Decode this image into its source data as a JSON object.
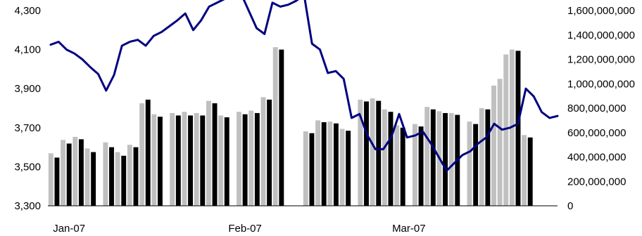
{
  "chart_data": {
    "type": "bar",
    "combo": "bars on right axis with line on left axis",
    "x_tick_labels": [
      "Jan-07",
      "Feb-07",
      "Mar-07"
    ],
    "x_tick_positions": [
      3,
      32,
      59
    ],
    "left_axis": {
      "ylim": [
        3300,
        4300
      ],
      "ticks": [
        3300,
        3500,
        3700,
        3900,
        4100,
        4300
      ],
      "tick_labels": [
        "3,300",
        "3,500",
        "3,700",
        "3,900",
        "4,100",
        "4,300"
      ]
    },
    "right_axis": {
      "ylim": [
        0,
        1600000000
      ],
      "ticks": [
        0,
        200000000,
        400000000,
        600000000,
        800000000,
        1000000000,
        1200000000,
        1400000000,
        1600000000
      ],
      "tick_labels": [
        "0",
        "200,000,000",
        "400,000,000",
        "600,000,000",
        "800,000,000",
        "1,000,000,000",
        "1,200,000,000",
        "1,400,000,000",
        "1,600,000,000"
      ]
    },
    "x_count": 84,
    "grid": false,
    "legend": "none",
    "series": [
      {
        "type": "bar",
        "axis": "right",
        "bars": [
          {
            "x": 0,
            "v": 430000000,
            "c": "grey"
          },
          {
            "x": 1,
            "v": 395000000,
            "c": "black"
          },
          {
            "x": 2,
            "v": 540000000,
            "c": "grey"
          },
          {
            "x": 3,
            "v": 510000000,
            "c": "black"
          },
          {
            "x": 4,
            "v": 565000000,
            "c": "grey"
          },
          {
            "x": 5,
            "v": 545000000,
            "c": "black"
          },
          {
            "x": 6,
            "v": 470000000,
            "c": "grey"
          },
          {
            "x": 7,
            "v": 440000000,
            "c": "black"
          },
          {
            "x": 9,
            "v": 520000000,
            "c": "grey"
          },
          {
            "x": 10,
            "v": 480000000,
            "c": "black"
          },
          {
            "x": 11,
            "v": 440000000,
            "c": "grey"
          },
          {
            "x": 12,
            "v": 410000000,
            "c": "black"
          },
          {
            "x": 13,
            "v": 500000000,
            "c": "grey"
          },
          {
            "x": 14,
            "v": 480000000,
            "c": "black"
          },
          {
            "x": 15,
            "v": 840000000,
            "c": "grey"
          },
          {
            "x": 16,
            "v": 870000000,
            "c": "black"
          },
          {
            "x": 17,
            "v": 750000000,
            "c": "grey"
          },
          {
            "x": 18,
            "v": 730000000,
            "c": "black"
          },
          {
            "x": 20,
            "v": 760000000,
            "c": "grey"
          },
          {
            "x": 21,
            "v": 740000000,
            "c": "black"
          },
          {
            "x": 22,
            "v": 770000000,
            "c": "grey"
          },
          {
            "x": 23,
            "v": 740000000,
            "c": "black"
          },
          {
            "x": 24,
            "v": 760000000,
            "c": "grey"
          },
          {
            "x": 25,
            "v": 740000000,
            "c": "black"
          },
          {
            "x": 26,
            "v": 860000000,
            "c": "grey"
          },
          {
            "x": 27,
            "v": 840000000,
            "c": "black"
          },
          {
            "x": 28,
            "v": 740000000,
            "c": "grey"
          },
          {
            "x": 29,
            "v": 725000000,
            "c": "black"
          },
          {
            "x": 31,
            "v": 770000000,
            "c": "grey"
          },
          {
            "x": 32,
            "v": 750000000,
            "c": "black"
          },
          {
            "x": 33,
            "v": 780000000,
            "c": "grey"
          },
          {
            "x": 34,
            "v": 760000000,
            "c": "black"
          },
          {
            "x": 35,
            "v": 890000000,
            "c": "grey"
          },
          {
            "x": 36,
            "v": 870000000,
            "c": "black"
          },
          {
            "x": 37,
            "v": 1300000000,
            "c": "grey"
          },
          {
            "x": 38,
            "v": 1280000000,
            "c": "black"
          },
          {
            "x": 42,
            "v": 610000000,
            "c": "grey"
          },
          {
            "x": 43,
            "v": 595000000,
            "c": "black"
          },
          {
            "x": 44,
            "v": 700000000,
            "c": "grey"
          },
          {
            "x": 45,
            "v": 685000000,
            "c": "black"
          },
          {
            "x": 46,
            "v": 690000000,
            "c": "grey"
          },
          {
            "x": 47,
            "v": 675000000,
            "c": "black"
          },
          {
            "x": 48,
            "v": 630000000,
            "c": "grey"
          },
          {
            "x": 49,
            "v": 615000000,
            "c": "black"
          },
          {
            "x": 51,
            "v": 870000000,
            "c": "grey"
          },
          {
            "x": 52,
            "v": 855000000,
            "c": "black"
          },
          {
            "x": 53,
            "v": 880000000,
            "c": "grey"
          },
          {
            "x": 54,
            "v": 860000000,
            "c": "black"
          },
          {
            "x": 55,
            "v": 790000000,
            "c": "grey"
          },
          {
            "x": 56,
            "v": 770000000,
            "c": "black"
          },
          {
            "x": 57,
            "v": 660000000,
            "c": "grey"
          },
          {
            "x": 58,
            "v": 640000000,
            "c": "black"
          },
          {
            "x": 60,
            "v": 670000000,
            "c": "grey"
          },
          {
            "x": 61,
            "v": 650000000,
            "c": "black"
          },
          {
            "x": 62,
            "v": 810000000,
            "c": "grey"
          },
          {
            "x": 63,
            "v": 790000000,
            "c": "black"
          },
          {
            "x": 64,
            "v": 775000000,
            "c": "grey"
          },
          {
            "x": 65,
            "v": 760000000,
            "c": "black"
          },
          {
            "x": 66,
            "v": 760000000,
            "c": "grey"
          },
          {
            "x": 67,
            "v": 745000000,
            "c": "black"
          },
          {
            "x": 69,
            "v": 690000000,
            "c": "grey"
          },
          {
            "x": 70,
            "v": 670000000,
            "c": "black"
          },
          {
            "x": 71,
            "v": 800000000,
            "c": "grey"
          },
          {
            "x": 72,
            "v": 790000000,
            "c": "black"
          },
          {
            "x": 73,
            "v": 985000000,
            "c": "grey"
          },
          {
            "x": 74,
            "v": 1040000000,
            "c": "grey"
          },
          {
            "x": 75,
            "v": 1240000000,
            "c": "grey"
          },
          {
            "x": 76,
            "v": 1280000000,
            "c": "grey"
          },
          {
            "x": 77,
            "v": 1270000000,
            "c": "black"
          },
          {
            "x": 78,
            "v": 580000000,
            "c": "grey"
          },
          {
            "x": 79,
            "v": 560000000,
            "c": "black"
          }
        ]
      },
      {
        "type": "line",
        "axis": "left",
        "color": "#000080",
        "points": [
          [
            0,
            4125
          ],
          [
            1,
            4140
          ],
          [
            2,
            4100
          ],
          [
            3,
            4080
          ],
          [
            4,
            4050
          ],
          [
            5,
            4010
          ],
          [
            6,
            3975
          ],
          [
            7,
            3890
          ],
          [
            8,
            3970
          ],
          [
            9,
            4120
          ],
          [
            10,
            4140
          ],
          [
            11,
            4150
          ],
          [
            12,
            4120
          ],
          [
            13,
            4170
          ],
          [
            14,
            4190
          ],
          [
            15,
            4220
          ],
          [
            16,
            4250
          ],
          [
            17,
            4285
          ],
          [
            18,
            4200
          ],
          [
            19,
            4250
          ],
          [
            20,
            4320
          ],
          [
            21,
            4340
          ],
          [
            22,
            4360
          ],
          [
            23,
            4380
          ],
          [
            24,
            4390
          ],
          [
            25,
            4300
          ],
          [
            26,
            4210
          ],
          [
            27,
            4180
          ],
          [
            28,
            4340
          ],
          [
            29,
            4320
          ],
          [
            30,
            4330
          ],
          [
            31,
            4350
          ],
          [
            32,
            4380
          ],
          [
            33,
            4130
          ],
          [
            34,
            4100
          ],
          [
            35,
            3980
          ],
          [
            36,
            3990
          ],
          [
            37,
            3950
          ],
          [
            38,
            3750
          ],
          [
            39,
            3770
          ],
          [
            40,
            3660
          ],
          [
            41,
            3590
          ],
          [
            42,
            3590
          ],
          [
            43,
            3650
          ],
          [
            44,
            3770
          ],
          [
            45,
            3650
          ],
          [
            46,
            3660
          ],
          [
            47,
            3680
          ],
          [
            48,
            3620
          ],
          [
            49,
            3550
          ],
          [
            50,
            3480
          ],
          [
            51,
            3520
          ],
          [
            52,
            3560
          ],
          [
            53,
            3580
          ],
          [
            54,
            3620
          ],
          [
            55,
            3650
          ],
          [
            56,
            3720
          ],
          [
            57,
            3690
          ],
          [
            58,
            3700
          ],
          [
            59,
            3720
          ],
          [
            60,
            3900
          ],
          [
            61,
            3860
          ],
          [
            62,
            3780
          ],
          [
            63,
            3750
          ],
          [
            64,
            3760
          ]
        ]
      }
    ]
  }
}
